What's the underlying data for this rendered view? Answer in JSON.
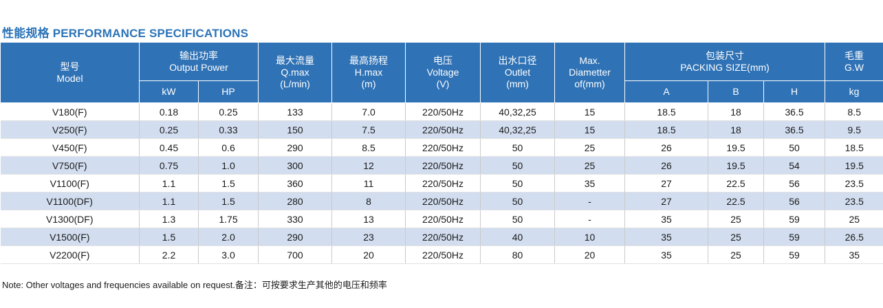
{
  "title": "性能规格 PERFORMANCE SPECIFICATIONS",
  "headers": {
    "model_cn": "型号",
    "model_en": "Model",
    "power_cn": "输出功率",
    "power_en": "Output Power",
    "kw": "kW",
    "hp": "HP",
    "qmax_cn": "最大流量",
    "qmax_en": "Q.max",
    "qmax_unit": "(L/min)",
    "hmax_cn": "最高扬程",
    "hmax_en": "H.max",
    "hmax_unit": "(m)",
    "voltage_cn": "电压",
    "voltage_en": "Voltage",
    "voltage_unit": "(V)",
    "outlet_cn": "出水口径",
    "outlet_en": "Outlet",
    "outlet_unit": "(mm)",
    "diam_1": "Max.",
    "diam_2": "Diametter",
    "diam_3": "of(mm)",
    "pack_cn": "包装尺寸",
    "pack_en": "PACKING SIZE(mm)",
    "a": "A",
    "b": "B",
    "h": "H",
    "gw_cn": "毛重",
    "gw_en": "G.W",
    "kg": "kg"
  },
  "rows": [
    [
      "V180(F)",
      "0.18",
      "0.25",
      "133",
      "7.0",
      "220/50Hz",
      "40,32,25",
      "15",
      "18.5",
      "18",
      "36.5",
      "8.5"
    ],
    [
      "V250(F)",
      "0.25",
      "0.33",
      "150",
      "7.5",
      "220/50Hz",
      "40,32,25",
      "15",
      "18.5",
      "18",
      "36.5",
      "9.5"
    ],
    [
      "V450(F)",
      "0.45",
      "0.6",
      "290",
      "8.5",
      "220/50Hz",
      "50",
      "25",
      "26",
      "19.5",
      "50",
      "18.5"
    ],
    [
      "V750(F)",
      "0.75",
      "1.0",
      "300",
      "12",
      "220/50Hz",
      "50",
      "25",
      "26",
      "19.5",
      "54",
      "19.5"
    ],
    [
      "V1100(F)",
      "1.1",
      "1.5",
      "360",
      "11",
      "220/50Hz",
      "50",
      "35",
      "27",
      "22.5",
      "56",
      "23.5"
    ],
    [
      "V1100(DF)",
      "1.1",
      "1.5",
      "280",
      "8",
      "220/50Hz",
      "50",
      "-",
      "27",
      "22.5",
      "56",
      "23.5"
    ],
    [
      "V1300(DF)",
      "1.3",
      "1.75",
      "330",
      "13",
      "220/50Hz",
      "50",
      "-",
      "35",
      "25",
      "59",
      "25"
    ],
    [
      "V1500(F)",
      "1.5",
      "2.0",
      "290",
      "23",
      "220/50Hz",
      "40",
      "10",
      "35",
      "25",
      "59",
      "26.5"
    ],
    [
      "V2200(F)",
      "2.2",
      "3.0",
      "700",
      "20",
      "220/50Hz",
      "80",
      "20",
      "35",
      "25",
      "59",
      "35"
    ]
  ],
  "note": "Note: Other voltages and  frequencies available on request.备注：可按要求生产其他的电压和频率",
  "colors": {
    "header_bg": "#2f72b5",
    "stripe": "#d2def0",
    "title": "#2a73b8"
  }
}
